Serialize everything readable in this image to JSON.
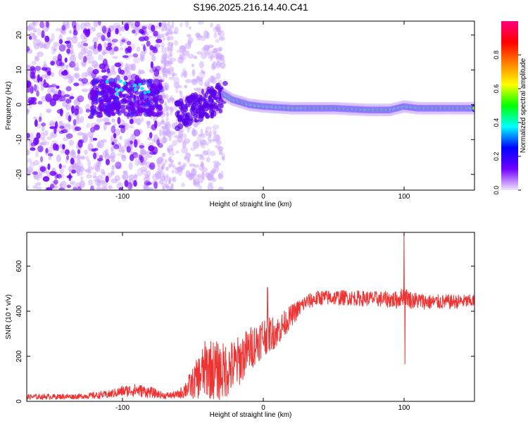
{
  "title": "S196.2025.216.14.40.C41",
  "chart_data": [
    {
      "type": "heatmap",
      "xlabel": "Height of straight line (km)",
      "ylabel": "Frequency (Hz)",
      "xlim": [
        -168,
        150
      ],
      "ylim": [
        -24.5,
        24
      ],
      "x_ticks": [
        -100,
        0,
        100
      ],
      "y_ticks": [
        -20,
        -10,
        0,
        10,
        20
      ],
      "colorbar": {
        "label": "Normalized spectral amplitude",
        "range": [
          0,
          1
        ],
        "ticks": [
          "0.0",
          "0.2",
          "0.4",
          "0.6",
          "0.8"
        ],
        "tick_values": [
          0,
          0.2,
          0.4,
          0.6,
          0.8
        ],
        "colors": [
          "#f4e6ff",
          "#7000ff",
          "#0000ff",
          "#00ffff",
          "#00ff00",
          "#ffff00",
          "#ff8000",
          "#ff0000",
          "#ff007f"
        ]
      },
      "ridge": {
        "description_points": [
          [
            -28,
            3
          ],
          [
            -22,
            1.5
          ],
          [
            -10,
            0
          ],
          [
            0,
            -0.5
          ],
          [
            20,
            -1
          ],
          [
            50,
            -1
          ],
          [
            75,
            -1.5
          ],
          [
            90,
            -1.5
          ],
          [
            100,
            -0.5
          ],
          [
            110,
            -1
          ],
          [
            150,
            -1
          ]
        ],
        "peak_regions": [
          [
            -20,
            -12
          ],
          [
            30,
            70
          ],
          [
            75,
            90
          ],
          [
            110,
            145
          ]
        ]
      }
    },
    {
      "type": "line",
      "xlabel": "Height of straight line (km)",
      "ylabel": "SNR (10 * v/v)",
      "xlim": [
        -168,
        150
      ],
      "ylim": [
        0,
        750
      ],
      "x_ticks": [
        -100,
        0,
        100
      ],
      "y_ticks": [
        0,
        200,
        400,
        600
      ],
      "color": "#ee3333",
      "envelope": {
        "x": [
          -168,
          -130,
          -110,
          -100,
          -90,
          -80,
          -70,
          -60,
          -50,
          -40,
          -30,
          -20,
          -10,
          0,
          10,
          20,
          30,
          40,
          60,
          80,
          95,
          100,
          105,
          120,
          150
        ],
        "mean": [
          20,
          22,
          30,
          45,
          50,
          40,
          25,
          30,
          80,
          150,
          130,
          160,
          230,
          290,
          310,
          380,
          440,
          460,
          460,
          455,
          450,
          470,
          450,
          440,
          445
        ],
        "spread": [
          12,
          12,
          18,
          25,
          30,
          25,
          14,
          18,
          70,
          140,
          130,
          120,
          100,
          90,
          70,
          50,
          35,
          35,
          35,
          35,
          40,
          40,
          40,
          35,
          30
        ]
      },
      "spikes": [
        {
          "x": 100,
          "y": 745
        },
        {
          "x": 100.6,
          "y": 165
        },
        {
          "x": 3,
          "y": 505
        }
      ]
    }
  ]
}
